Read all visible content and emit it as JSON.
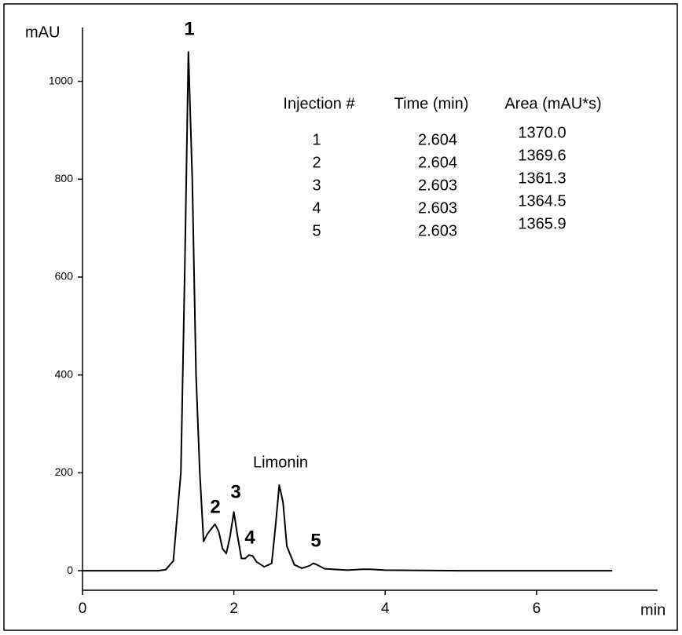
{
  "chart_data": {
    "type": "line",
    "x_label": "min",
    "y_label": "mAU",
    "x": [
      0,
      0.5,
      1.0,
      1.1,
      1.2,
      1.3,
      1.35,
      1.4,
      1.45,
      1.5,
      1.55,
      1.6,
      1.65,
      1.7,
      1.75,
      1.8,
      1.85,
      1.9,
      1.95,
      2.0,
      2.05,
      2.1,
      2.15,
      2.2,
      2.25,
      2.3,
      2.4,
      2.5,
      2.55,
      2.6,
      2.65,
      2.7,
      2.8,
      2.9,
      3.0,
      3.05,
      3.1,
      3.2,
      3.5,
      3.7,
      3.8,
      4.0,
      5.0,
      6.0,
      7.0
    ],
    "values": [
      0,
      0,
      0,
      2,
      20,
      200,
      600,
      1060,
      800,
      400,
      200,
      60,
      75,
      85,
      95,
      80,
      45,
      35,
      70,
      120,
      70,
      25,
      25,
      32,
      30,
      18,
      8,
      15,
      90,
      175,
      140,
      50,
      12,
      5,
      10,
      15,
      12,
      4,
      1,
      3,
      3,
      1,
      0,
      0,
      0
    ],
    "color": "#000000",
    "xlim": [
      0,
      7.6
    ],
    "ylim": [
      -40,
      1110
    ],
    "xticks": [
      0,
      2,
      4,
      6
    ],
    "yticks": [
      0,
      200,
      400,
      600,
      800,
      1000
    ],
    "annotations": [
      "1",
      "2",
      "3",
      "4",
      "5",
      "Limonin"
    ],
    "table": {
      "columns": [
        "Injection #",
        "Time (min)",
        "Area (mAU*s)"
      ],
      "rows": [
        [
          "1",
          "2.604",
          "1370.0"
        ],
        [
          "2",
          "2.604",
          "1369.6"
        ],
        [
          "3",
          "2.603",
          "1361.3"
        ],
        [
          "4",
          "2.603",
          "1364.5"
        ],
        [
          "5",
          "2.603",
          "1365.9"
        ]
      ]
    }
  }
}
